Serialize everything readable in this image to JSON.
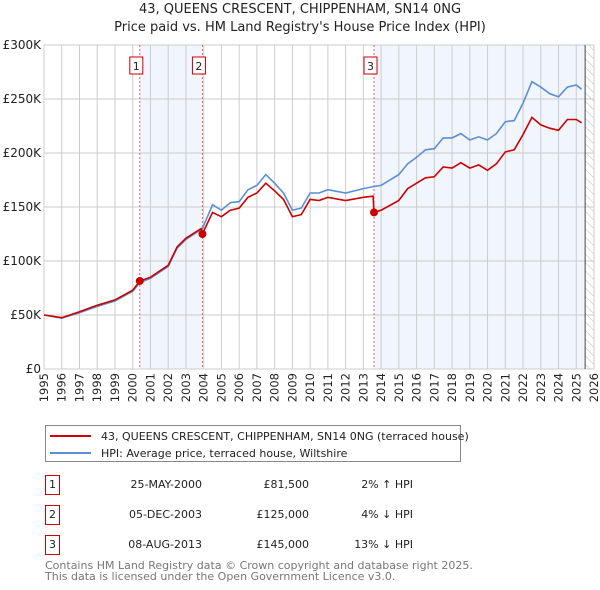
{
  "title": "43, QUEENS CRESCENT, CHIPPENHAM, SN14 0NG",
  "subtitle": "Price paid vs. HM Land Registry's House Price Index (HPI)",
  "chart_data": {
    "type": "line",
    "xlim": [
      1995,
      2026
    ],
    "ylim": [
      0,
      300
    ],
    "y_ticks": [
      0,
      50,
      100,
      150,
      200,
      250,
      300
    ],
    "y_tick_labels": [
      "£0",
      "£50K",
      "£100K",
      "£150K",
      "£200K",
      "£250K",
      "£300K"
    ],
    "x_ticks": [
      1995,
      1996,
      1997,
      1998,
      1999,
      2000,
      2001,
      2002,
      2003,
      2004,
      2005,
      2006,
      2007,
      2008,
      2009,
      2010,
      2011,
      2012,
      2013,
      2014,
      2015,
      2016,
      2017,
      2018,
      2019,
      2020,
      2021,
      2022,
      2023,
      2024,
      2025,
      2026
    ],
    "grid": true,
    "forecast_hatch_from": 2025.5,
    "shaded_ranges": [
      [
        2000.4,
        2003.93
      ],
      [
        2013.6,
        2025.5
      ]
    ],
    "series": [
      {
        "name": "43, QUEENS CRESCENT, CHIPPENHAM, SN14 0NG (terraced house)",
        "color": "#cc0000",
        "x": [
          1995,
          1996,
          1997,
          1998,
          1999,
          2000,
          2000.4,
          2001,
          2002,
          2002.5,
          2003,
          2003.85,
          2003.93,
          2004.5,
          2005,
          2005.5,
          2006,
          2006.5,
          2007,
          2007.5,
          2008,
          2008.5,
          2009,
          2009.5,
          2010,
          2010.5,
          2011,
          2012,
          2013,
          2013.55,
          2013.6,
          2014,
          2015,
          2015.5,
          2016,
          2016.5,
          2017,
          2017.5,
          2018,
          2018.5,
          2019,
          2019.5,
          2020,
          2020.5,
          2021,
          2021.5,
          2022,
          2022.5,
          2023,
          2023.5,
          2024,
          2024.5,
          2025,
          2025.3
        ],
        "y": [
          50,
          47.5,
          53,
          59,
          64,
          73,
          81.5,
          85,
          96,
          113,
          121,
          130,
          125,
          145,
          141,
          147,
          149,
          159,
          163,
          172,
          165,
          157,
          141,
          143,
          157,
          156,
          159,
          156,
          159,
          160,
          145,
          147,
          156,
          167,
          172,
          177,
          178,
          187,
          186,
          191,
          186,
          189,
          184,
          190,
          201,
          203,
          217,
          233,
          226,
          223,
          221,
          231,
          231,
          228
        ]
      },
      {
        "name": "HPI: Average price, terraced house, Wiltshire",
        "color": "#5b8fd4",
        "x": [
          1995,
          1996,
          1997,
          1998,
          1999,
          2000,
          2000.4,
          2001,
          2002,
          2002.5,
          2003,
          2003.93,
          2004.5,
          2005,
          2005.5,
          2006,
          2006.5,
          2007,
          2007.5,
          2008,
          2008.5,
          2009,
          2009.5,
          2010,
          2010.5,
          2011,
          2012,
          2013,
          2013.6,
          2014,
          2015,
          2015.5,
          2016,
          2016.5,
          2017,
          2017.5,
          2018,
          2018.5,
          2019,
          2019.5,
          2020,
          2020.5,
          2021,
          2021.5,
          2022,
          2022.5,
          2023,
          2023.5,
          2024,
          2024.5,
          2025,
          2025.3
        ],
        "y": [
          50,
          47,
          52,
          58,
          63,
          72,
          80,
          84,
          95,
          112,
          120,
          130,
          152,
          147,
          154,
          155,
          166,
          170,
          180,
          172,
          163,
          147,
          149,
          163,
          163,
          166,
          163,
          167,
          169,
          170,
          180,
          190,
          196,
          203,
          204,
          214,
          214,
          218,
          212,
          215,
          212,
          218,
          229,
          230,
          246,
          266,
          261,
          255,
          252,
          261,
          263,
          259
        ]
      }
    ],
    "sales": [
      {
        "label": "1",
        "x": 2000.4,
        "y": 81.5
      },
      {
        "label": "2",
        "x": 2003.93,
        "y": 125
      },
      {
        "label": "3",
        "x": 2013.6,
        "y": 145
      }
    ]
  },
  "legend": {
    "property": "43, QUEENS CRESCENT, CHIPPENHAM, SN14 0NG (terraced house)",
    "hpi": "HPI: Average price, terraced house, Wiltshire"
  },
  "transactions": [
    {
      "num": "1",
      "date": "25-MAY-2000",
      "price": "£81,500",
      "hpi": "2% ↑ HPI"
    },
    {
      "num": "2",
      "date": "05-DEC-2003",
      "price": "£125,000",
      "hpi": "4% ↓ HPI"
    },
    {
      "num": "3",
      "date": "08-AUG-2013",
      "price": "£145,000",
      "hpi": "13% ↓ HPI"
    }
  ],
  "footer": {
    "line1": "Contains HM Land Registry data © Crown copyright and database right 2025.",
    "line2": "This data is licensed under the Open Government Licence v3.0."
  }
}
